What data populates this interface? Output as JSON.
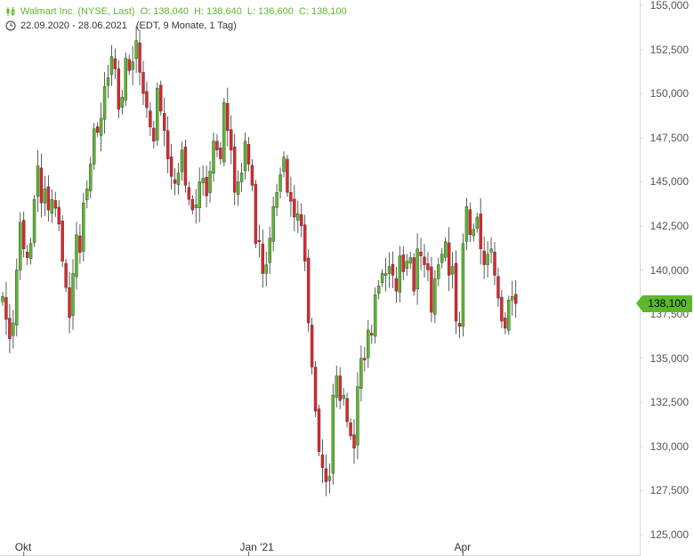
{
  "header": {
    "instrument": "Walmart Inc. (NYSE, Last)",
    "open": "O: 138,040",
    "high": "H: 138,640",
    "low": "L: 136,600",
    "close": "C: 138,100",
    "range": "22.09.2020 - 28.06.2021",
    "meta": "(EDT, 9 Monate, 1 Tag)"
  },
  "last_price_label": "138,100",
  "colors": {
    "up": "#5cb82e",
    "down": "#e0262b",
    "wick": "#333333",
    "axis": "#d8d8d8",
    "header_text": "#5cb82e"
  },
  "chart_data": {
    "type": "candlestick",
    "title": "Walmart Inc. (NYSE, Last)",
    "ylim": [
      124000,
      155500
    ],
    "y_ticks": [
      "125,000",
      "127,500",
      "130,000",
      "132,500",
      "135,000",
      "137,500",
      "140,000",
      "142,500",
      "145,000",
      "147,500",
      "150,000",
      "152,500",
      "155,000"
    ],
    "y_tick_values": [
      125000,
      127500,
      130000,
      132500,
      135000,
      137500,
      140000,
      142500,
      145000,
      147500,
      150000,
      152500,
      155000
    ],
    "x_ticks": [
      {
        "label": "Okt",
        "index": 6
      },
      {
        "label": "Jan '21",
        "index": 70
      },
      {
        "label": "Apr",
        "index": 131
      }
    ],
    "last_close": 138100,
    "closes": [
      138500,
      137200,
      136100,
      137000,
      140000,
      142700,
      141200,
      140700,
      141500,
      144000,
      145900,
      143800,
      144600,
      143400,
      144000,
      143500,
      142600,
      140500,
      139000,
      137300,
      139800,
      142000,
      141000,
      143800,
      144600,
      146000,
      148000,
      147800,
      148600,
      150400,
      150900,
      152100,
      151400,
      149100,
      149800,
      152000,
      151300,
      151800,
      153000,
      151200,
      150000,
      149200,
      148100,
      147300,
      150300,
      149000,
      147900,
      146300,
      145300,
      144900,
      145500,
      146800,
      144800,
      144000,
      143400,
      143700,
      145000,
      145200,
      144200,
      145600,
      147300,
      146800,
      146300,
      149500,
      147900,
      146800,
      144400,
      145000,
      145500,
      147300,
      146000,
      144800,
      141500,
      141600,
      139800,
      140300,
      141800,
      143600,
      144400,
      145400,
      146400,
      144400,
      143900,
      143000,
      143200,
      142500,
      140500,
      137000,
      134500,
      132000,
      129700,
      128800,
      128000,
      128300,
      132900,
      134000,
      132600,
      132900,
      131400,
      130600,
      129900,
      133400,
      135000,
      134900,
      136600,
      136300,
      138600,
      139100,
      139800,
      139800,
      140200,
      139700,
      138800,
      140800,
      139900,
      140500,
      140700,
      138800,
      141200,
      140800,
      140300,
      140000,
      137600,
      139500,
      140300,
      140900,
      141600,
      139700,
      140200,
      137100,
      136800,
      141500,
      143600,
      142000,
      142300,
      143000,
      141200,
      140300,
      140900,
      141200,
      139700,
      138400,
      137100,
      136700,
      138300,
      138500,
      138100
    ]
  }
}
